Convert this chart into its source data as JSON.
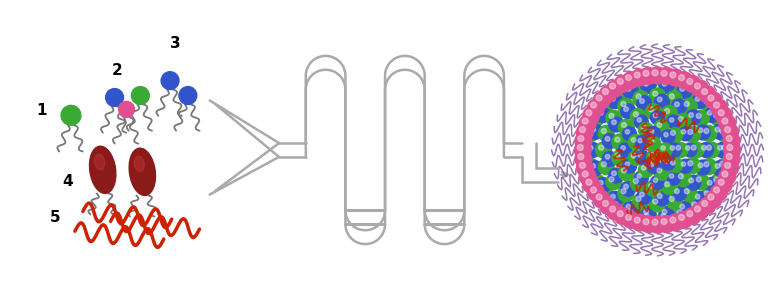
{
  "bg_color": "#ffffff",
  "lipid_colors": {
    "green": "#3aaa35",
    "blue": "#3355cc",
    "pink": "#e05090",
    "dark_red": "#8b1a1a",
    "peg_tail": "#8866aa",
    "mrna_red": "#cc2200",
    "tail_gray": "#777777",
    "channel_gray": "#aaaaaa"
  },
  "fig_width": 7.8,
  "fig_height": 3.0,
  "dpi": 100
}
